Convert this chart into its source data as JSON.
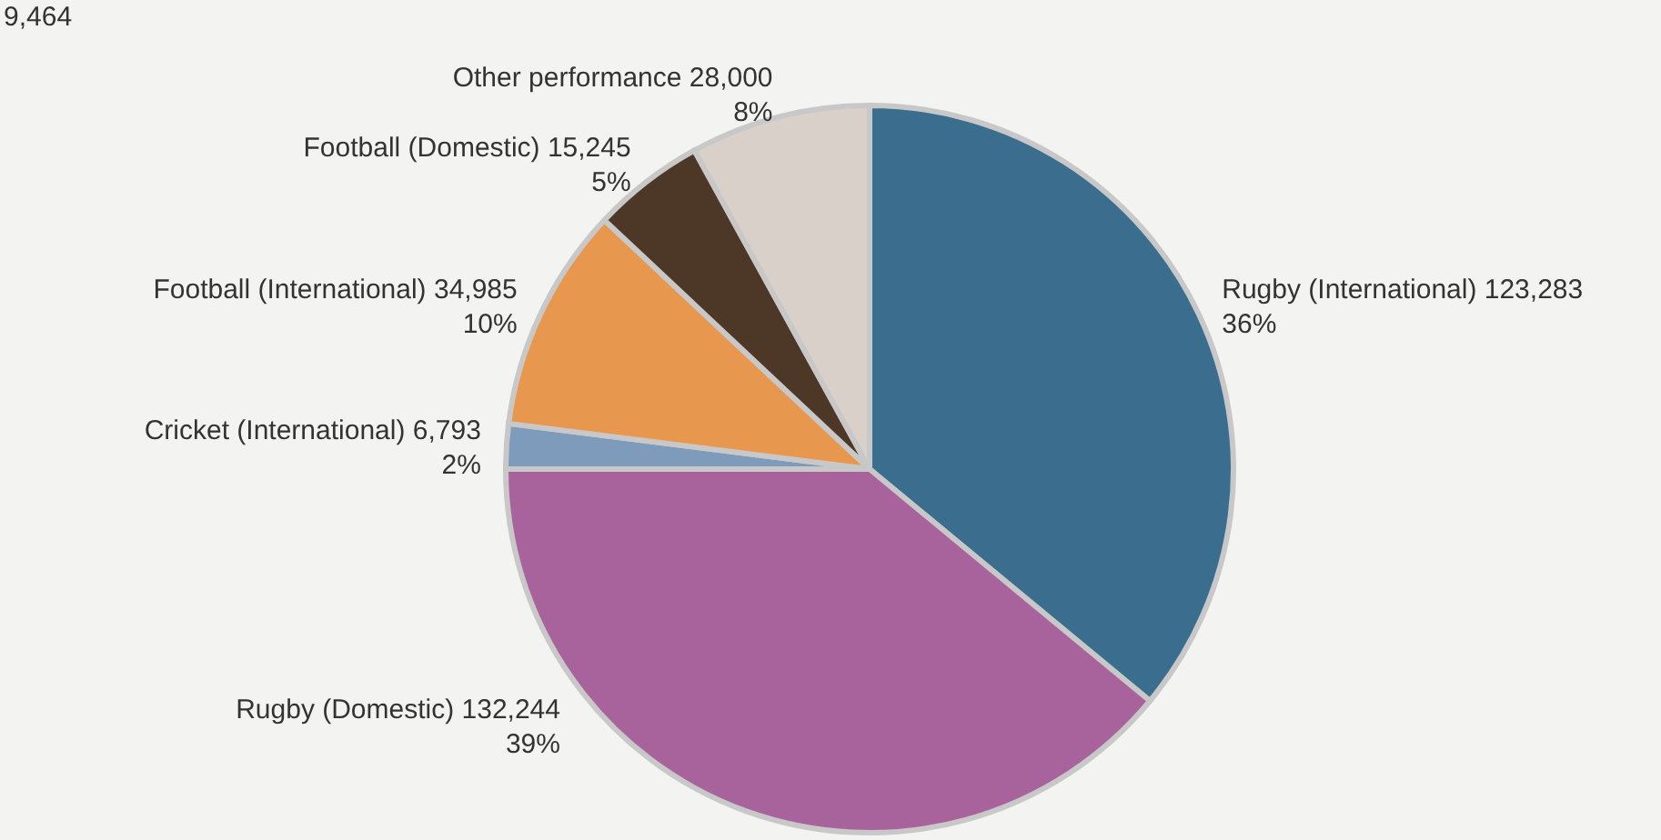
{
  "chart_data": {
    "type": "pie",
    "categories": [
      "Rugby (International) 123,283",
      "Rugby (Domestic) 132,244",
      "Cricket (International) 6,793",
      "Football (International) 34,985",
      "Football (Domestic) 15,245",
      "Other performance 28,000"
    ],
    "values": [
      36,
      39,
      2,
      10,
      5,
      8
    ],
    "value_labels": [
      "36%",
      "39%",
      "2%",
      "10%",
      "5%",
      "8%"
    ],
    "colors": [
      "#3b6d8f",
      "#a9639c",
      "#7f9bbb",
      "#e8974f",
      "#4d3726",
      "#d9d0ca"
    ],
    "annotations": [
      "9,464"
    ]
  }
}
